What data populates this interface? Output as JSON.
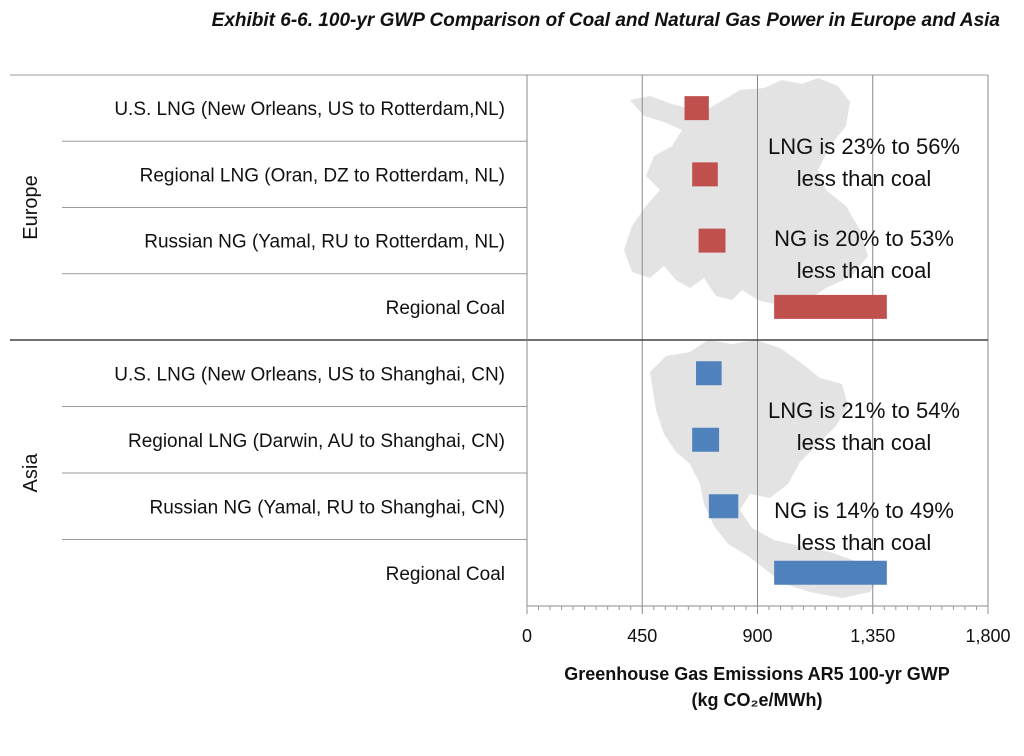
{
  "title": "Exhibit 6-6. 100-yr GWP Comparison of Coal and Natural Gas Power in Europe and Asia",
  "chart_data": {
    "type": "bar",
    "orientation": "horizontal",
    "title": "Exhibit 6-6. 100-yr GWP Comparison of Coal and Natural Gas Power in Europe and Asia",
    "xlabel_line1": "Greenhouse Gas Emissions AR5 100-yr GWP",
    "xlabel_line2": "(kg CO₂e/MWh)",
    "xlim": [
      0,
      1800
    ],
    "xticks": [
      0,
      450,
      900,
      1350,
      1800
    ],
    "xtick_labels": [
      "0",
      "450",
      "900",
      "1,350",
      "1,800"
    ],
    "grid": "vertical",
    "groups": [
      {
        "name": "Europe",
        "color": "#c0504d",
        "map": "Europe map silhouette",
        "rows": [
          {
            "label": "U.S. LNG (New Orleans, US to Rotterdam,NL)",
            "min": 615,
            "max": 710
          },
          {
            "label": "Regional LNG (Oran, DZ to Rotterdam, NL)",
            "min": 645,
            "max": 745
          },
          {
            "label": "Russian NG (Yamal, RU to Rotterdam, NL)",
            "min": 670,
            "max": 775
          },
          {
            "label": "Regional Coal",
            "min": 965,
            "max": 1405
          }
        ],
        "annotations": [
          {
            "lines": [
              "LNG is 23% to 56%",
              "less than coal"
            ]
          },
          {
            "lines": [
              "NG is 20% to 53%",
              "less than coal"
            ]
          }
        ]
      },
      {
        "name": "Asia",
        "color": "#4f81bd",
        "map": "Asia map silhouette",
        "rows": [
          {
            "label": "U.S. LNG (New Orleans, US to Shanghai, CN)",
            "min": 660,
            "max": 760
          },
          {
            "label": "Regional LNG (Darwin, AU to Shanghai, CN)",
            "min": 645,
            "max": 750
          },
          {
            "label": "Russian NG (Yamal, RU to Shanghai, CN)",
            "min": 710,
            "max": 825
          },
          {
            "label": "Regional Coal",
            "min": 965,
            "max": 1405
          }
        ],
        "annotations": [
          {
            "lines": [
              "LNG is 21% to 54%",
              "less than coal"
            ]
          },
          {
            "lines": [
              "NG is 14% to 49%",
              "less than coal"
            ]
          }
        ]
      }
    ]
  }
}
